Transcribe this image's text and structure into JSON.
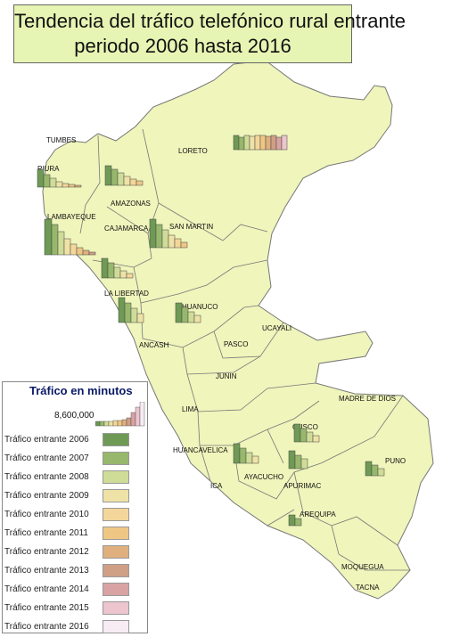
{
  "title_line1": "Tendencia del tráfico telefónico rural entrante",
  "title_line2": "periodo 2006 hasta 2016",
  "legend": {
    "title": "Tráfico en minutos",
    "scale_value": "8,600,000",
    "entries": [
      {
        "label": "Tráfico entrante 2006",
        "color": "#6f9a55"
      },
      {
        "label": "Tráfico entrante 2007",
        "color": "#97b86c"
      },
      {
        "label": "Tráfico entrante 2008",
        "color": "#cfdc98"
      },
      {
        "label": "Tráfico entrante 2009",
        "color": "#efe2a6"
      },
      {
        "label": "Tráfico entrante 2010",
        "color": "#f3d79a"
      },
      {
        "label": "Tráfico entrante 2011",
        "color": "#efc785"
      },
      {
        "label": "Tráfico entrante 2012",
        "color": "#dfb07e"
      },
      {
        "label": "Tráfico entrante 2013",
        "color": "#cf9f86"
      },
      {
        "label": "Tráfico entrante 2014",
        "color": "#d9a3a3"
      },
      {
        "label": "Tráfico entrante 2015",
        "color": "#ecc5cf"
      },
      {
        "label": "Tráfico entrante 2016",
        "color": "#f7ebf4"
      }
    ]
  },
  "colors": {
    "land": "#eff5bb",
    "border": "#777777",
    "chart_outline": "#444444"
  },
  "regions": {
    "tumbes": "TUMBES",
    "piura": "PIURA",
    "loreto": "LORETO",
    "amazonas": "AMAZONAS",
    "lambayeque": "LAMBAYEQUE",
    "cajamarca": "CAJAMARCA",
    "san_martin": "SAN MARTIN",
    "la_libertad": "LA LIBERTAD",
    "huanuco": "HUANUCO",
    "ancash": "ANCASH",
    "ucayali": "UCAYALI",
    "pasco": "PASCO",
    "junin": "JUNIN",
    "lima": "LIMA",
    "madre_de_dios": "MADRE DE DIOS",
    "cusco": "CUSCO",
    "huancavelica": "HUANCAVELICA",
    "ayacucho": "AYACUCHO",
    "puno": "PUNO",
    "ica": "ICA",
    "apurimac": "APURIMAC",
    "arequipa": "AREQUIPA",
    "moquegua": "MOQUEGUA",
    "tacna": "TACNA"
  }
}
